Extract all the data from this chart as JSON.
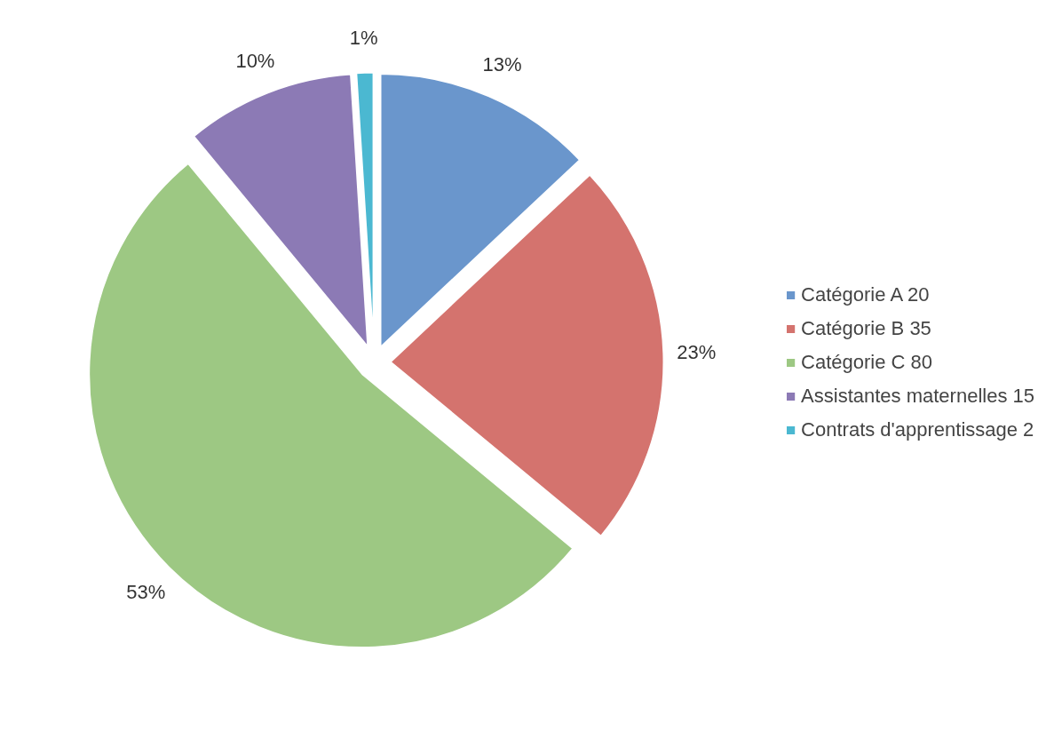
{
  "chart_data": {
    "type": "pie",
    "categories": [
      "Catégorie A 20",
      "Catégorie B 35",
      "Catégorie C 80",
      "Assistantes maternelles 15",
      "Contrats d'apprentissage 2"
    ],
    "values": [
      13,
      23,
      53,
      10,
      1
    ],
    "colors": [
      "#6a96cc",
      "#d4736e",
      "#9dc883",
      "#8c7ab5",
      "#4bb8d1"
    ],
    "value_labels": [
      "13%",
      "23%",
      "53%",
      "10%",
      "1%"
    ],
    "legend": "right"
  }
}
